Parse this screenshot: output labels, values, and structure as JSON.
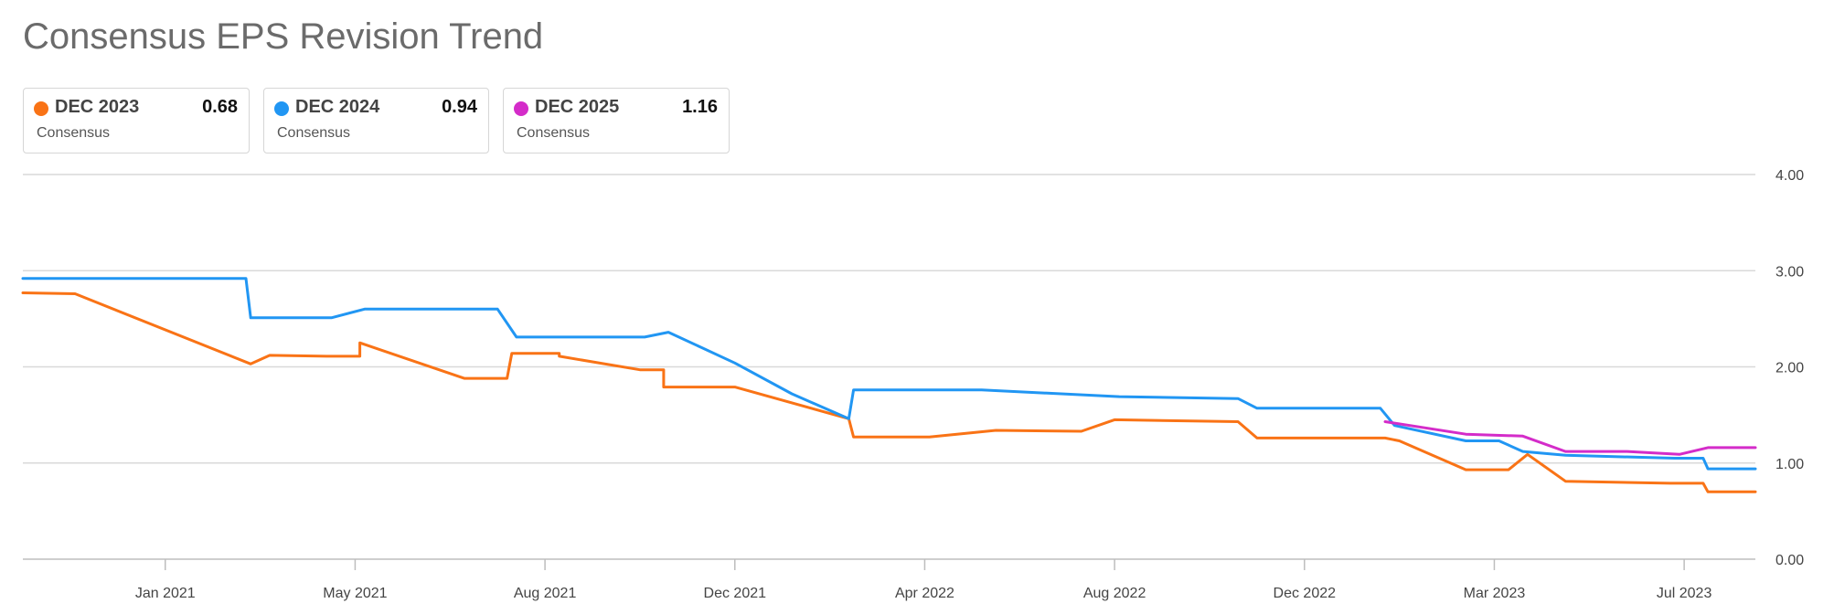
{
  "title": "Consensus EPS Revision Trend",
  "legend": [
    {
      "name": "DEC 2023",
      "value": "0.68",
      "sub": "Consensus",
      "color": "#f97316"
    },
    {
      "name": "DEC 2024",
      "value": "0.94",
      "sub": "Consensus",
      "color": "#2196f3"
    },
    {
      "name": "DEC 2025",
      "value": "1.16",
      "sub": "Consensus",
      "color": "#d42cc9"
    }
  ],
  "chart_data": {
    "type": "line",
    "title": "Consensus EPS Revision Trend",
    "xlabel": "",
    "ylabel": "",
    "ylim": [
      0,
      4
    ],
    "xlim": [
      0,
      36.5
    ],
    "y_ticks": [
      0,
      1,
      2,
      3,
      4
    ],
    "y_tick_labels": [
      "0.00",
      "1.00",
      "2.00",
      "3.00",
      "4.00"
    ],
    "x_ticks": [
      3,
      7,
      11,
      15,
      19,
      23,
      27,
      31,
      35
    ],
    "x_tick_labels": [
      "Jan 2021",
      "May 2021",
      "Aug 2021",
      "Dec 2021",
      "Apr 2022",
      "Aug 2022",
      "Dec 2022",
      "Mar 2023",
      "Jul 2023"
    ],
    "grid": true,
    "legend_position": "top-left",
    "series": [
      {
        "name": "DEC 2023",
        "color": "#f97316",
        "points": [
          [
            0,
            2.77
          ],
          [
            1.1,
            2.76
          ],
          [
            4.8,
            2.03
          ],
          [
            5.2,
            2.12
          ],
          [
            6.4,
            2.11
          ],
          [
            7.1,
            2.11
          ],
          [
            7.1,
            2.25
          ],
          [
            9.3,
            1.88
          ],
          [
            10.2,
            1.88
          ],
          [
            10.3,
            2.14
          ],
          [
            11.3,
            2.14
          ],
          [
            11.3,
            2.11
          ],
          [
            13.0,
            1.97
          ],
          [
            13.5,
            1.97
          ],
          [
            13.5,
            1.79
          ],
          [
            15.0,
            1.79
          ],
          [
            17.4,
            1.46
          ],
          [
            17.5,
            1.27
          ],
          [
            19.1,
            1.27
          ],
          [
            20.5,
            1.34
          ],
          [
            22.3,
            1.33
          ],
          [
            23.0,
            1.45
          ],
          [
            25.6,
            1.43
          ],
          [
            26.0,
            1.26
          ],
          [
            28.7,
            1.26
          ],
          [
            29.0,
            1.23
          ],
          [
            30.4,
            0.93
          ],
          [
            31.3,
            0.93
          ],
          [
            31.7,
            1.09
          ],
          [
            32.5,
            0.81
          ],
          [
            34.7,
            0.79
          ],
          [
            35.4,
            0.79
          ],
          [
            35.5,
            0.7
          ],
          [
            36.5,
            0.7
          ]
        ]
      },
      {
        "name": "DEC 2024",
        "color": "#2196f3",
        "points": [
          [
            0,
            2.92
          ],
          [
            4.7,
            2.92
          ],
          [
            4.8,
            2.51
          ],
          [
            6.5,
            2.51
          ],
          [
            7.2,
            2.6
          ],
          [
            10.0,
            2.6
          ],
          [
            10.4,
            2.31
          ],
          [
            13.1,
            2.31
          ],
          [
            13.6,
            2.36
          ],
          [
            15.0,
            2.04
          ],
          [
            16.2,
            1.72
          ],
          [
            17.4,
            1.46
          ],
          [
            17.5,
            1.76
          ],
          [
            20.2,
            1.76
          ],
          [
            23.1,
            1.69
          ],
          [
            25.6,
            1.67
          ],
          [
            26.0,
            1.57
          ],
          [
            28.6,
            1.57
          ],
          [
            28.9,
            1.39
          ],
          [
            30.4,
            1.23
          ],
          [
            31.1,
            1.23
          ],
          [
            31.6,
            1.12
          ],
          [
            32.5,
            1.08
          ],
          [
            34.8,
            1.05
          ],
          [
            35.4,
            1.05
          ],
          [
            35.5,
            0.94
          ],
          [
            36.5,
            0.94
          ]
        ]
      },
      {
        "name": "DEC 2025",
        "color": "#d42cc9",
        "points": [
          [
            28.7,
            1.43
          ],
          [
            30.4,
            1.3
          ],
          [
            31.6,
            1.28
          ],
          [
            32.5,
            1.12
          ],
          [
            33.8,
            1.12
          ],
          [
            34.9,
            1.09
          ],
          [
            35.5,
            1.16
          ],
          [
            36.5,
            1.16
          ]
        ]
      }
    ]
  }
}
